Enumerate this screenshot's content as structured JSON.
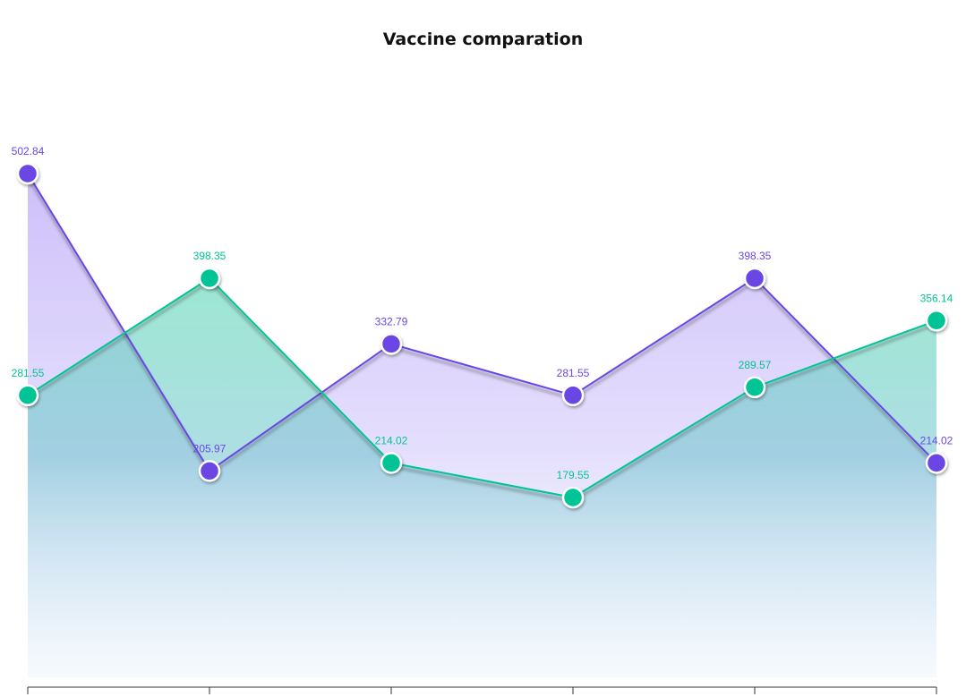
{
  "chart_data": {
    "type": "area",
    "title": "Vaccine comparation",
    "xlabel": "",
    "ylabel": "",
    "categories": [
      "",
      "",
      "",
      "",
      "",
      ""
    ],
    "ylim": [
      0,
      560
    ],
    "grid": false,
    "series": [
      {
        "name": "",
        "color": "#6b46e5",
        "values": [
          502.84,
          205.97,
          332.79,
          281.55,
          398.35,
          214.02
        ]
      },
      {
        "name": "",
        "color": "#00c496",
        "values": [
          281.55,
          398.35,
          214.02,
          179.55,
          289.57,
          356.14
        ]
      }
    ]
  }
}
